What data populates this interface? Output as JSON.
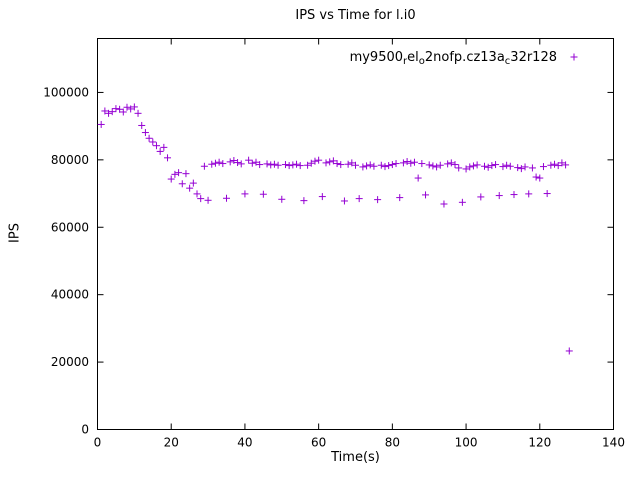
{
  "window": {
    "background_color": "#ffffff",
    "text_color": "#000000"
  },
  "chart_data": {
    "type": "scatter",
    "title": "IPS vs Time for l.i0",
    "xlabel": "Time(s)",
    "ylabel": "IPS",
    "xlim": [
      0,
      140
    ],
    "ylim": [
      0,
      116000
    ],
    "xticks": [
      0,
      20,
      40,
      60,
      80,
      100,
      120,
      140
    ],
    "yticks": [
      0,
      20000,
      40000,
      60000,
      80000,
      100000
    ],
    "grid": false,
    "legend_position": "top-right-inside",
    "marker": "plus",
    "marker_color": "#9400d3",
    "series": [
      {
        "name": "my9500_rel_o2nofp.cz13a_c32r128",
        "label_segments": [
          {
            "t": "my9500"
          },
          {
            "t": "r",
            "sub": true
          },
          {
            "t": "el"
          },
          {
            "t": "o",
            "sub": true
          },
          {
            "t": "2nofp.cz13a"
          },
          {
            "t": "c",
            "sub": true
          },
          {
            "t": "32r128"
          }
        ],
        "points": [
          [
            1,
            90500
          ],
          [
            2,
            94500
          ],
          [
            3,
            93800
          ],
          [
            4,
            94300
          ],
          [
            5,
            95200
          ],
          [
            6,
            95000
          ],
          [
            7,
            94200
          ],
          [
            8,
            95600
          ],
          [
            9,
            95100
          ],
          [
            10,
            95700
          ],
          [
            11,
            93800
          ],
          [
            12,
            90200
          ],
          [
            13,
            88100
          ],
          [
            14,
            86400
          ],
          [
            15,
            85300
          ],
          [
            16,
            84200
          ],
          [
            17,
            82500
          ],
          [
            18,
            83700
          ],
          [
            19,
            80600
          ],
          [
            20,
            74300
          ],
          [
            21,
            75700
          ],
          [
            22,
            76200
          ],
          [
            23,
            72900
          ],
          [
            24,
            75900
          ],
          [
            25,
            71600
          ],
          [
            26,
            73100
          ],
          [
            27,
            69900
          ],
          [
            28,
            68500
          ],
          [
            29,
            78100
          ],
          [
            30,
            68000
          ],
          [
            31,
            78700
          ],
          [
            32,
            79000
          ],
          [
            33,
            79300
          ],
          [
            34,
            78900
          ],
          [
            35,
            68600
          ],
          [
            36,
            79400
          ],
          [
            37,
            79800
          ],
          [
            38,
            79200
          ],
          [
            39,
            78800
          ],
          [
            40,
            69900
          ],
          [
            41,
            79900
          ],
          [
            42,
            79000
          ],
          [
            43,
            79300
          ],
          [
            44,
            78600
          ],
          [
            45,
            69800
          ],
          [
            46,
            78800
          ],
          [
            47,
            78500
          ],
          [
            48,
            78700
          ],
          [
            49,
            78400
          ],
          [
            50,
            68300
          ],
          [
            51,
            78600
          ],
          [
            52,
            78300
          ],
          [
            53,
            78500
          ],
          [
            54,
            78700
          ],
          [
            55,
            78300
          ],
          [
            56,
            67900
          ],
          [
            57,
            78400
          ],
          [
            58,
            79000
          ],
          [
            59,
            79600
          ],
          [
            60,
            79900
          ],
          [
            61,
            69100
          ],
          [
            62,
            79100
          ],
          [
            63,
            79400
          ],
          [
            64,
            79700
          ],
          [
            65,
            78900
          ],
          [
            66,
            78600
          ],
          [
            67,
            67800
          ],
          [
            68,
            78700
          ],
          [
            69,
            79100
          ],
          [
            70,
            78400
          ],
          [
            71,
            68500
          ],
          [
            72,
            77900
          ],
          [
            73,
            78200
          ],
          [
            74,
            78500
          ],
          [
            75,
            78100
          ],
          [
            76,
            68200
          ],
          [
            77,
            78400
          ],
          [
            78,
            78000
          ],
          [
            79,
            78300
          ],
          [
            80,
            78600
          ],
          [
            81,
            78900
          ],
          [
            82,
            68800
          ],
          [
            83,
            79100
          ],
          [
            84,
            79500
          ],
          [
            85,
            79000
          ],
          [
            86,
            79300
          ],
          [
            87,
            74600
          ],
          [
            88,
            78900
          ],
          [
            89,
            69600
          ],
          [
            90,
            78500
          ],
          [
            91,
            78200
          ],
          [
            92,
            77900
          ],
          [
            93,
            78400
          ],
          [
            94,
            66900
          ],
          [
            95,
            78800
          ],
          [
            96,
            79100
          ],
          [
            97,
            78600
          ],
          [
            98,
            77600
          ],
          [
            99,
            67400
          ],
          [
            100,
            77300
          ],
          [
            101,
            77900
          ],
          [
            102,
            78200
          ],
          [
            103,
            78500
          ],
          [
            104,
            69000
          ],
          [
            105,
            78100
          ],
          [
            106,
            77800
          ],
          [
            107,
            78300
          ],
          [
            108,
            78600
          ],
          [
            109,
            69400
          ],
          [
            110,
            78000
          ],
          [
            111,
            78400
          ],
          [
            112,
            78100
          ],
          [
            113,
            69700
          ],
          [
            114,
            77700
          ],
          [
            115,
            77400
          ],
          [
            116,
            77900
          ],
          [
            117,
            69900
          ],
          [
            118,
            77600
          ],
          [
            119,
            74900
          ],
          [
            120,
            74600
          ],
          [
            121,
            78000
          ],
          [
            122,
            70000
          ],
          [
            123,
            78400
          ],
          [
            124,
            78700
          ],
          [
            125,
            78300
          ],
          [
            126,
            79100
          ],
          [
            127,
            78500
          ],
          [
            128,
            23300
          ]
        ]
      }
    ]
  }
}
